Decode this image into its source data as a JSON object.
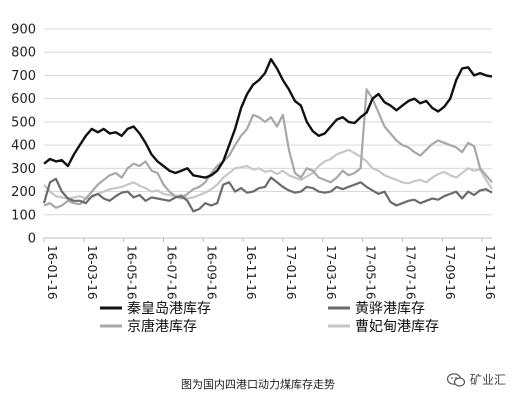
{
  "chart_data": {
    "type": "line",
    "y_range": [
      0,
      900
    ],
    "y_ticks": [
      0,
      100,
      200,
      300,
      400,
      500,
      600,
      700,
      800,
      900
    ],
    "x_tick_labels": [
      "16-01-16",
      "16-03-16",
      "16-05-16",
      "16-07-16",
      "16-09-16",
      "16-11-16",
      "17-01-16",
      "17-03-16",
      "17-05-16",
      "17-07-16",
      "17-09-16",
      "17-11-16"
    ],
    "grid": true,
    "legend_position": "bottom",
    "series": [
      {
        "name": "秦皇岛港库存",
        "color": "#111111",
        "points": [
          [
            0,
            320
          ],
          [
            0.3,
            340
          ],
          [
            0.6,
            330
          ],
          [
            0.9,
            335
          ],
          [
            1.2,
            310
          ],
          [
            1.5,
            360
          ],
          [
            1.8,
            400
          ],
          [
            2.1,
            440
          ],
          [
            2.4,
            470
          ],
          [
            2.7,
            455
          ],
          [
            3.0,
            470
          ],
          [
            3.3,
            450
          ],
          [
            3.6,
            455
          ],
          [
            3.9,
            440
          ],
          [
            4.2,
            470
          ],
          [
            4.5,
            480
          ],
          [
            4.8,
            450
          ],
          [
            5.1,
            410
          ],
          [
            5.4,
            360
          ],
          [
            5.7,
            330
          ],
          [
            6.0,
            310
          ],
          [
            6.3,
            290
          ],
          [
            6.6,
            280
          ],
          [
            6.9,
            290
          ],
          [
            7.2,
            300
          ],
          [
            7.5,
            270
          ],
          [
            7.8,
            265
          ],
          [
            8.1,
            260
          ],
          [
            8.4,
            270
          ],
          [
            8.7,
            290
          ],
          [
            9.0,
            330
          ],
          [
            9.3,
            400
          ],
          [
            9.6,
            470
          ],
          [
            9.9,
            560
          ],
          [
            10.2,
            620
          ],
          [
            10.5,
            660
          ],
          [
            10.8,
            680
          ],
          [
            11.1,
            710
          ],
          [
            11.4,
            770
          ],
          [
            11.7,
            730
          ],
          [
            12.0,
            680
          ],
          [
            12.3,
            640
          ],
          [
            12.6,
            590
          ],
          [
            12.9,
            570
          ],
          [
            13.2,
            500
          ],
          [
            13.5,
            460
          ],
          [
            13.8,
            440
          ],
          [
            14.1,
            450
          ],
          [
            14.4,
            480
          ],
          [
            14.7,
            510
          ],
          [
            15.0,
            520
          ],
          [
            15.3,
            500
          ],
          [
            15.6,
            495
          ],
          [
            15.9,
            520
          ],
          [
            16.2,
            540
          ],
          [
            16.5,
            600
          ],
          [
            16.8,
            620
          ],
          [
            17.1,
            585
          ],
          [
            17.4,
            570
          ],
          [
            17.7,
            550
          ],
          [
            18.0,
            570
          ],
          [
            18.3,
            590
          ],
          [
            18.6,
            600
          ],
          [
            18.9,
            580
          ],
          [
            19.2,
            590
          ],
          [
            19.5,
            560
          ],
          [
            19.8,
            545
          ],
          [
            20.1,
            565
          ],
          [
            20.4,
            600
          ],
          [
            20.7,
            680
          ],
          [
            21.0,
            730
          ],
          [
            21.3,
            735
          ],
          [
            21.6,
            700
          ],
          [
            21.9,
            710
          ],
          [
            22.2,
            700
          ],
          [
            22.5,
            695
          ]
        ]
      },
      {
        "name": "黄骅港库存",
        "color": "#6b6b6b",
        "points": [
          [
            0,
            150
          ],
          [
            0.3,
            240
          ],
          [
            0.6,
            255
          ],
          [
            0.9,
            200
          ],
          [
            1.2,
            170
          ],
          [
            1.5,
            160
          ],
          [
            1.8,
            160
          ],
          [
            2.1,
            150
          ],
          [
            2.4,
            180
          ],
          [
            2.7,
            190
          ],
          [
            3.0,
            170
          ],
          [
            3.3,
            160
          ],
          [
            3.6,
            180
          ],
          [
            3.9,
            195
          ],
          [
            4.2,
            200
          ],
          [
            4.5,
            175
          ],
          [
            4.8,
            185
          ],
          [
            5.1,
            160
          ],
          [
            5.4,
            175
          ],
          [
            5.7,
            170
          ],
          [
            6.0,
            165
          ],
          [
            6.3,
            160
          ],
          [
            6.6,
            175
          ],
          [
            6.9,
            180
          ],
          [
            7.2,
            160
          ],
          [
            7.5,
            115
          ],
          [
            7.8,
            125
          ],
          [
            8.1,
            150
          ],
          [
            8.4,
            140
          ],
          [
            8.7,
            150
          ],
          [
            9.0,
            230
          ],
          [
            9.3,
            240
          ],
          [
            9.6,
            200
          ],
          [
            9.9,
            215
          ],
          [
            10.2,
            195
          ],
          [
            10.5,
            200
          ],
          [
            10.8,
            215
          ],
          [
            11.1,
            220
          ],
          [
            11.4,
            260
          ],
          [
            11.7,
            240
          ],
          [
            12.0,
            220
          ],
          [
            12.3,
            205
          ],
          [
            12.6,
            195
          ],
          [
            12.9,
            200
          ],
          [
            13.2,
            220
          ],
          [
            13.5,
            215
          ],
          [
            13.8,
            200
          ],
          [
            14.1,
            195
          ],
          [
            14.4,
            200
          ],
          [
            14.7,
            220
          ],
          [
            15.0,
            210
          ],
          [
            15.3,
            220
          ],
          [
            15.6,
            230
          ],
          [
            15.9,
            240
          ],
          [
            16.2,
            220
          ],
          [
            16.5,
            205
          ],
          [
            16.8,
            190
          ],
          [
            17.1,
            200
          ],
          [
            17.4,
            155
          ],
          [
            17.7,
            140
          ],
          [
            18.0,
            150
          ],
          [
            18.3,
            160
          ],
          [
            18.6,
            165
          ],
          [
            18.9,
            150
          ],
          [
            19.2,
            160
          ],
          [
            19.5,
            170
          ],
          [
            19.8,
            165
          ],
          [
            20.1,
            180
          ],
          [
            20.4,
            190
          ],
          [
            20.7,
            200
          ],
          [
            21.0,
            170
          ],
          [
            21.3,
            200
          ],
          [
            21.6,
            185
          ],
          [
            21.9,
            205
          ],
          [
            22.2,
            210
          ],
          [
            22.5,
            195
          ]
        ]
      },
      {
        "name": "京唐港库存",
        "color": "#a8a8a8",
        "points": [
          [
            0,
            140
          ],
          [
            0.3,
            150
          ],
          [
            0.6,
            130
          ],
          [
            0.9,
            140
          ],
          [
            1.2,
            160
          ],
          [
            1.5,
            150
          ],
          [
            1.8,
            145
          ],
          [
            2.1,
            170
          ],
          [
            2.4,
            200
          ],
          [
            2.7,
            230
          ],
          [
            3.0,
            250
          ],
          [
            3.3,
            270
          ],
          [
            3.6,
            280
          ],
          [
            3.9,
            260
          ],
          [
            4.2,
            300
          ],
          [
            4.5,
            320
          ],
          [
            4.8,
            310
          ],
          [
            5.1,
            330
          ],
          [
            5.4,
            290
          ],
          [
            5.7,
            280
          ],
          [
            6.0,
            230
          ],
          [
            6.3,
            200
          ],
          [
            6.6,
            180
          ],
          [
            6.9,
            170
          ],
          [
            7.2,
            190
          ],
          [
            7.5,
            210
          ],
          [
            7.8,
            220
          ],
          [
            8.1,
            240
          ],
          [
            8.4,
            280
          ],
          [
            8.7,
            310
          ],
          [
            9.0,
            330
          ],
          [
            9.3,
            355
          ],
          [
            9.6,
            400
          ],
          [
            9.9,
            440
          ],
          [
            10.2,
            470
          ],
          [
            10.5,
            530
          ],
          [
            10.8,
            520
          ],
          [
            11.1,
            500
          ],
          [
            11.4,
            520
          ],
          [
            11.7,
            480
          ],
          [
            12.0,
            530
          ],
          [
            12.3,
            380
          ],
          [
            12.6,
            280
          ],
          [
            12.9,
            260
          ],
          [
            13.2,
            300
          ],
          [
            13.5,
            290
          ],
          [
            13.8,
            260
          ],
          [
            14.1,
            250
          ],
          [
            14.4,
            240
          ],
          [
            14.7,
            260
          ],
          [
            15.0,
            290
          ],
          [
            15.3,
            270
          ],
          [
            15.6,
            280
          ],
          [
            15.9,
            300
          ],
          [
            16.2,
            640
          ],
          [
            16.5,
            600
          ],
          [
            16.8,
            540
          ],
          [
            17.1,
            480
          ],
          [
            17.4,
            450
          ],
          [
            17.7,
            420
          ],
          [
            18.0,
            400
          ],
          [
            18.3,
            390
          ],
          [
            18.6,
            370
          ],
          [
            18.9,
            355
          ],
          [
            19.2,
            380
          ],
          [
            19.5,
            405
          ],
          [
            19.8,
            420
          ],
          [
            20.1,
            410
          ],
          [
            20.4,
            400
          ],
          [
            20.7,
            390
          ],
          [
            21.0,
            370
          ],
          [
            21.3,
            410
          ],
          [
            21.6,
            395
          ],
          [
            21.9,
            300
          ],
          [
            22.2,
            270
          ],
          [
            22.5,
            240
          ]
        ]
      },
      {
        "name": "曹妃甸港库存",
        "color": "#c7c7c7",
        "points": [
          [
            0,
            230
          ],
          [
            0.3,
            200
          ],
          [
            0.6,
            180
          ],
          [
            0.9,
            175
          ],
          [
            1.2,
            170
          ],
          [
            1.5,
            175
          ],
          [
            1.8,
            180
          ],
          [
            2.1,
            170
          ],
          [
            2.4,
            175
          ],
          [
            2.7,
            190
          ],
          [
            3.0,
            200
          ],
          [
            3.3,
            210
          ],
          [
            3.6,
            215
          ],
          [
            3.9,
            220
          ],
          [
            4.2,
            230
          ],
          [
            4.5,
            240
          ],
          [
            4.8,
            225
          ],
          [
            5.1,
            215
          ],
          [
            5.4,
            200
          ],
          [
            5.7,
            205
          ],
          [
            6.0,
            190
          ],
          [
            6.3,
            185
          ],
          [
            6.6,
            180
          ],
          [
            6.9,
            185
          ],
          [
            7.2,
            170
          ],
          [
            7.5,
            175
          ],
          [
            7.8,
            185
          ],
          [
            8.1,
            195
          ],
          [
            8.4,
            210
          ],
          [
            8.7,
            230
          ],
          [
            9.0,
            260
          ],
          [
            9.3,
            280
          ],
          [
            9.6,
            300
          ],
          [
            9.9,
            305
          ],
          [
            10.2,
            310
          ],
          [
            10.5,
            295
          ],
          [
            10.8,
            300
          ],
          [
            11.1,
            285
          ],
          [
            11.4,
            290
          ],
          [
            11.7,
            275
          ],
          [
            12.0,
            290
          ],
          [
            12.3,
            270
          ],
          [
            12.6,
            260
          ],
          [
            12.9,
            250
          ],
          [
            13.2,
            265
          ],
          [
            13.5,
            280
          ],
          [
            13.8,
            310
          ],
          [
            14.1,
            330
          ],
          [
            14.4,
            340
          ],
          [
            14.7,
            360
          ],
          [
            15.0,
            370
          ],
          [
            15.3,
            380
          ],
          [
            15.6,
            365
          ],
          [
            15.9,
            350
          ],
          [
            16.2,
            330
          ],
          [
            16.5,
            300
          ],
          [
            16.8,
            290
          ],
          [
            17.1,
            270
          ],
          [
            17.4,
            260
          ],
          [
            17.7,
            250
          ],
          [
            18.0,
            240
          ],
          [
            18.3,
            235
          ],
          [
            18.6,
            245
          ],
          [
            18.9,
            250
          ],
          [
            19.2,
            240
          ],
          [
            19.5,
            260
          ],
          [
            19.8,
            275
          ],
          [
            20.1,
            285
          ],
          [
            20.4,
            270
          ],
          [
            20.7,
            260
          ],
          [
            21.0,
            280
          ],
          [
            21.3,
            300
          ],
          [
            21.6,
            290
          ],
          [
            21.9,
            295
          ],
          [
            22.2,
            250
          ],
          [
            22.5,
            210
          ]
        ]
      }
    ]
  },
  "caption": "图为国内四港口动力煤库存走势",
  "watermark": {
    "text": "矿业汇",
    "icon": "wechat-icon"
  }
}
